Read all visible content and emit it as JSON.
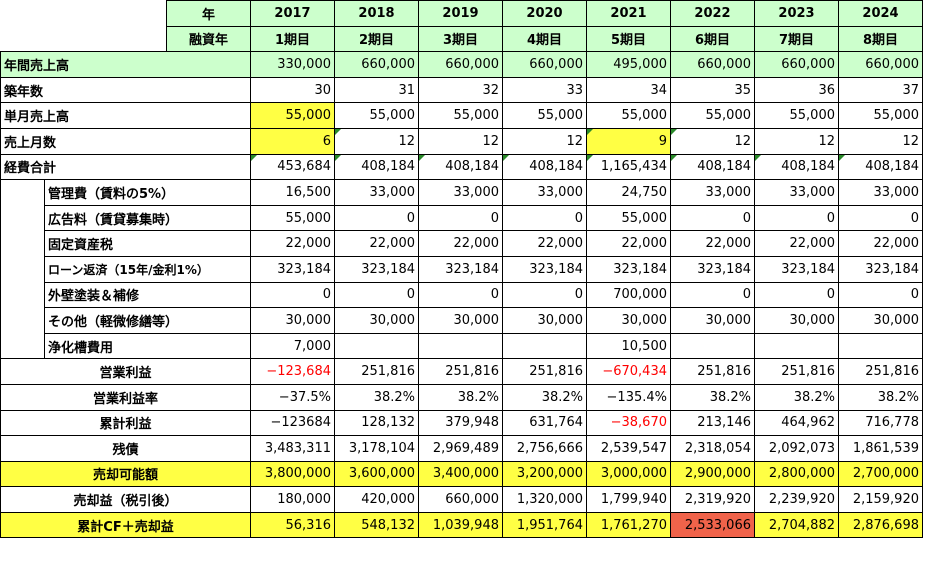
{
  "header": {
    "year_label": "年",
    "loan_label": "融資年",
    "years": [
      "2017",
      "2018",
      "2019",
      "2020",
      "2021",
      "2022",
      "2023",
      "2024"
    ],
    "periods": [
      "1期目",
      "2期目",
      "3期目",
      "4期目",
      "5期目",
      "6期目",
      "7期目",
      "8期目"
    ]
  },
  "rows": {
    "annual_sales": {
      "label": "年間売上高",
      "values": [
        "330,000",
        "660,000",
        "660,000",
        "660,000",
        "495,000",
        "660,000",
        "660,000",
        "660,000"
      ]
    },
    "building_age": {
      "label": "築年数",
      "values": [
        "30",
        "31",
        "32",
        "33",
        "34",
        "35",
        "36",
        "37"
      ]
    },
    "monthly_sales": {
      "label": "単月売上高",
      "values": [
        "55,000",
        "55,000",
        "55,000",
        "55,000",
        "55,000",
        "55,000",
        "55,000",
        "55,000"
      ]
    },
    "sales_months": {
      "label": "売上月数",
      "values": [
        "6",
        "12",
        "12",
        "12",
        "9",
        "12",
        "12",
        "12"
      ]
    },
    "total_expenses": {
      "label": "経費合計",
      "values": [
        "453,684",
        "408,184",
        "408,184",
        "408,184",
        "1,165,434",
        "408,184",
        "408,184",
        "408,184"
      ]
    },
    "mgmt_fee": {
      "label": "管理費（賃料の5%）",
      "values": [
        "16,500",
        "33,000",
        "33,000",
        "33,000",
        "24,750",
        "33,000",
        "33,000",
        "33,000"
      ]
    },
    "ad_fee": {
      "label": "広告料（賃貸募集時）",
      "values": [
        "55,000",
        "0",
        "0",
        "0",
        "55,000",
        "0",
        "0",
        "0"
      ]
    },
    "property_tax": {
      "label": "固定資産税",
      "values": [
        "22,000",
        "22,000",
        "22,000",
        "22,000",
        "22,000",
        "22,000",
        "22,000",
        "22,000"
      ]
    },
    "loan_repay": {
      "label": "ローン返済（15年/金利1%）",
      "values": [
        "323,184",
        "323,184",
        "323,184",
        "323,184",
        "323,184",
        "323,184",
        "323,184",
        "323,184"
      ]
    },
    "exterior": {
      "label": "外壁塗装＆補修",
      "values": [
        "0",
        "0",
        "0",
        "0",
        "700,000",
        "0",
        "0",
        "0"
      ]
    },
    "other": {
      "label": "その他（軽微修繕等）",
      "values": [
        "30,000",
        "30,000",
        "30,000",
        "30,000",
        "30,000",
        "30,000",
        "30,000",
        "30,000"
      ]
    },
    "septic": {
      "label": "浄化槽費用",
      "values": [
        "7,000",
        "",
        "",
        "",
        "10,500",
        "",
        "",
        ""
      ]
    },
    "op_profit": {
      "label": "営業利益",
      "values": [
        "−123,684",
        "251,816",
        "251,816",
        "251,816",
        "−670,434",
        "251,816",
        "251,816",
        "251,816"
      ]
    },
    "op_margin": {
      "label": "営業利益率",
      "values": [
        "−37.5%",
        "38.2%",
        "38.2%",
        "38.2%",
        "−135.4%",
        "38.2%",
        "38.2%",
        "38.2%"
      ]
    },
    "cum_profit": {
      "label": "累計利益",
      "values": [
        "−123684",
        "128,132",
        "379,948",
        "631,764",
        "−38,670",
        "213,146",
        "464,962",
        "716,778"
      ]
    },
    "remaining_debt": {
      "label": "残債",
      "values": [
        "3,483,311",
        "3,178,104",
        "2,969,489",
        "2,756,666",
        "2,539,547",
        "2,318,054",
        "2,092,073",
        "1,861,539"
      ]
    },
    "sale_price": {
      "label": "売却可能額",
      "values": [
        "3,800,000",
        "3,600,000",
        "3,400,000",
        "3,200,000",
        "3,000,000",
        "2,900,000",
        "2,800,000",
        "2,700,000"
      ]
    },
    "sale_gain": {
      "label": "売却益（税引後）",
      "values": [
        "180,000",
        "420,000",
        "660,000",
        "1,320,000",
        "1,799,940",
        "2,319,920",
        "2,239,920",
        "2,159,920"
      ]
    },
    "cum_cf": {
      "label": "累計CF＋売却益",
      "values": [
        "56,316",
        "548,132",
        "1,039,948",
        "1,951,764",
        "1,761,270",
        "2,533,066",
        "2,704,882",
        "2,876,698"
      ]
    }
  },
  "colors": {
    "header_green": "#ccffcc",
    "highlight_yellow": "#ffff44",
    "negative_red": "#ff0000",
    "peak_red": "#f0634a"
  }
}
